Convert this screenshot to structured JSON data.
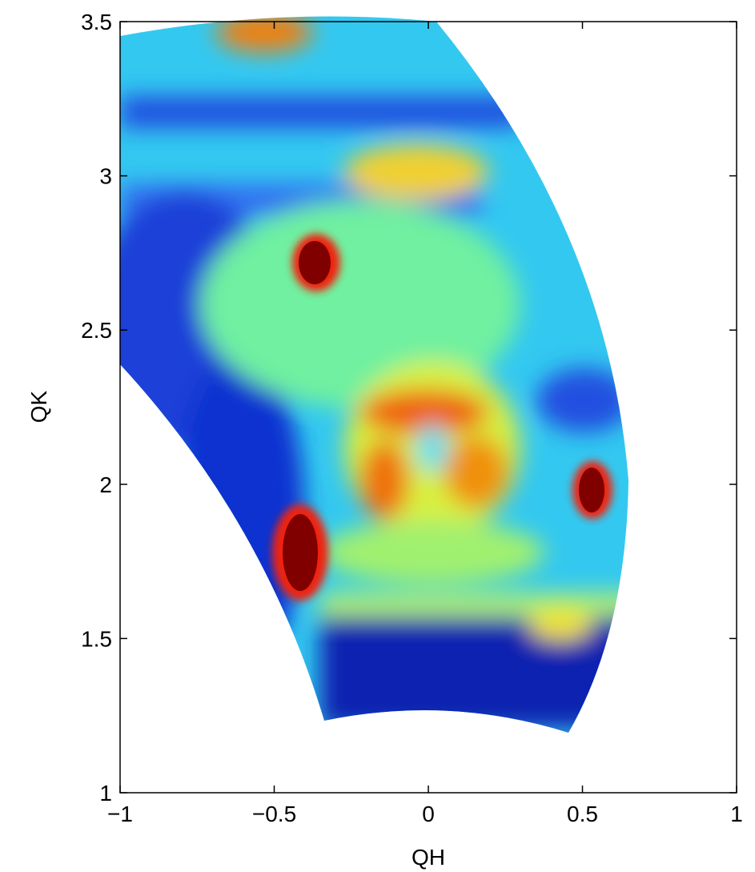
{
  "chart_data": {
    "type": "contour",
    "xlabel": "QH",
    "ylabel": "QK",
    "xlim": [
      -1,
      1
    ],
    "ylim": [
      1,
      3.5
    ],
    "xticks": [
      {
        "value": -1,
        "label": "−1"
      },
      {
        "value": -0.5,
        "label": "−0.5"
      },
      0,
      0.5,
      1
    ],
    "yticks": [
      1,
      1.5,
      2,
      2.5,
      3,
      3.5
    ],
    "box": true
  }
}
